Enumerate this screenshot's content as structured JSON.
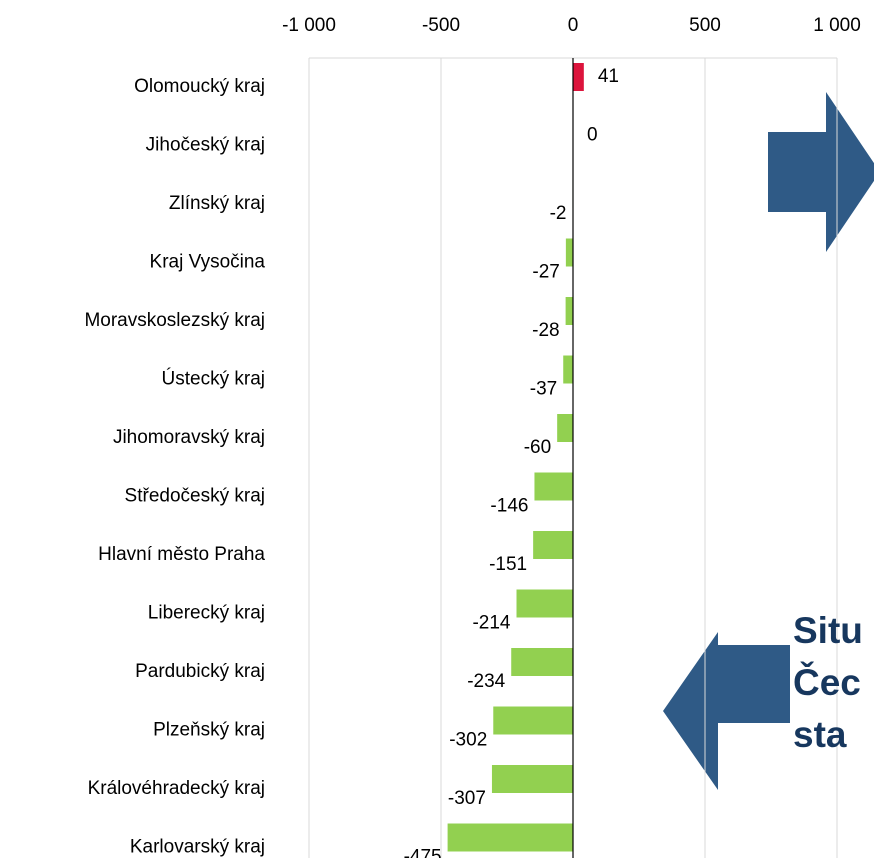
{
  "chart_data": {
    "type": "bar",
    "orientation": "horizontal",
    "categories": [
      "Olomoucký kraj",
      "Jihočeský kraj",
      "Zlínský kraj",
      "Kraj Vysočina",
      "Moravskoslezský kraj",
      "Ústecký kraj",
      "Jihomoravský kraj",
      "Středočeský kraj",
      "Hlavní město Praha",
      "Liberecký kraj",
      "Pardubický kraj",
      "Plzeňský kraj",
      "Královéhradecký kraj",
      "Karlovarský kraj"
    ],
    "values": [
      41,
      0,
      -2,
      -27,
      -28,
      -37,
      -60,
      -146,
      -151,
      -214,
      -234,
      -302,
      -307,
      -475
    ],
    "positive_color": "#dc143c",
    "negative_color": "#92d050",
    "xlim": [
      -1000,
      1000
    ],
    "xticks": [
      {
        "value": -1000,
        "label": "-1 000"
      },
      -500,
      0,
      500,
      {
        "value": 1000,
        "label": "1 000"
      }
    ],
    "grid": true,
    "annotation_lines": [
      "Situ",
      "Čec",
      "sta"
    ]
  }
}
